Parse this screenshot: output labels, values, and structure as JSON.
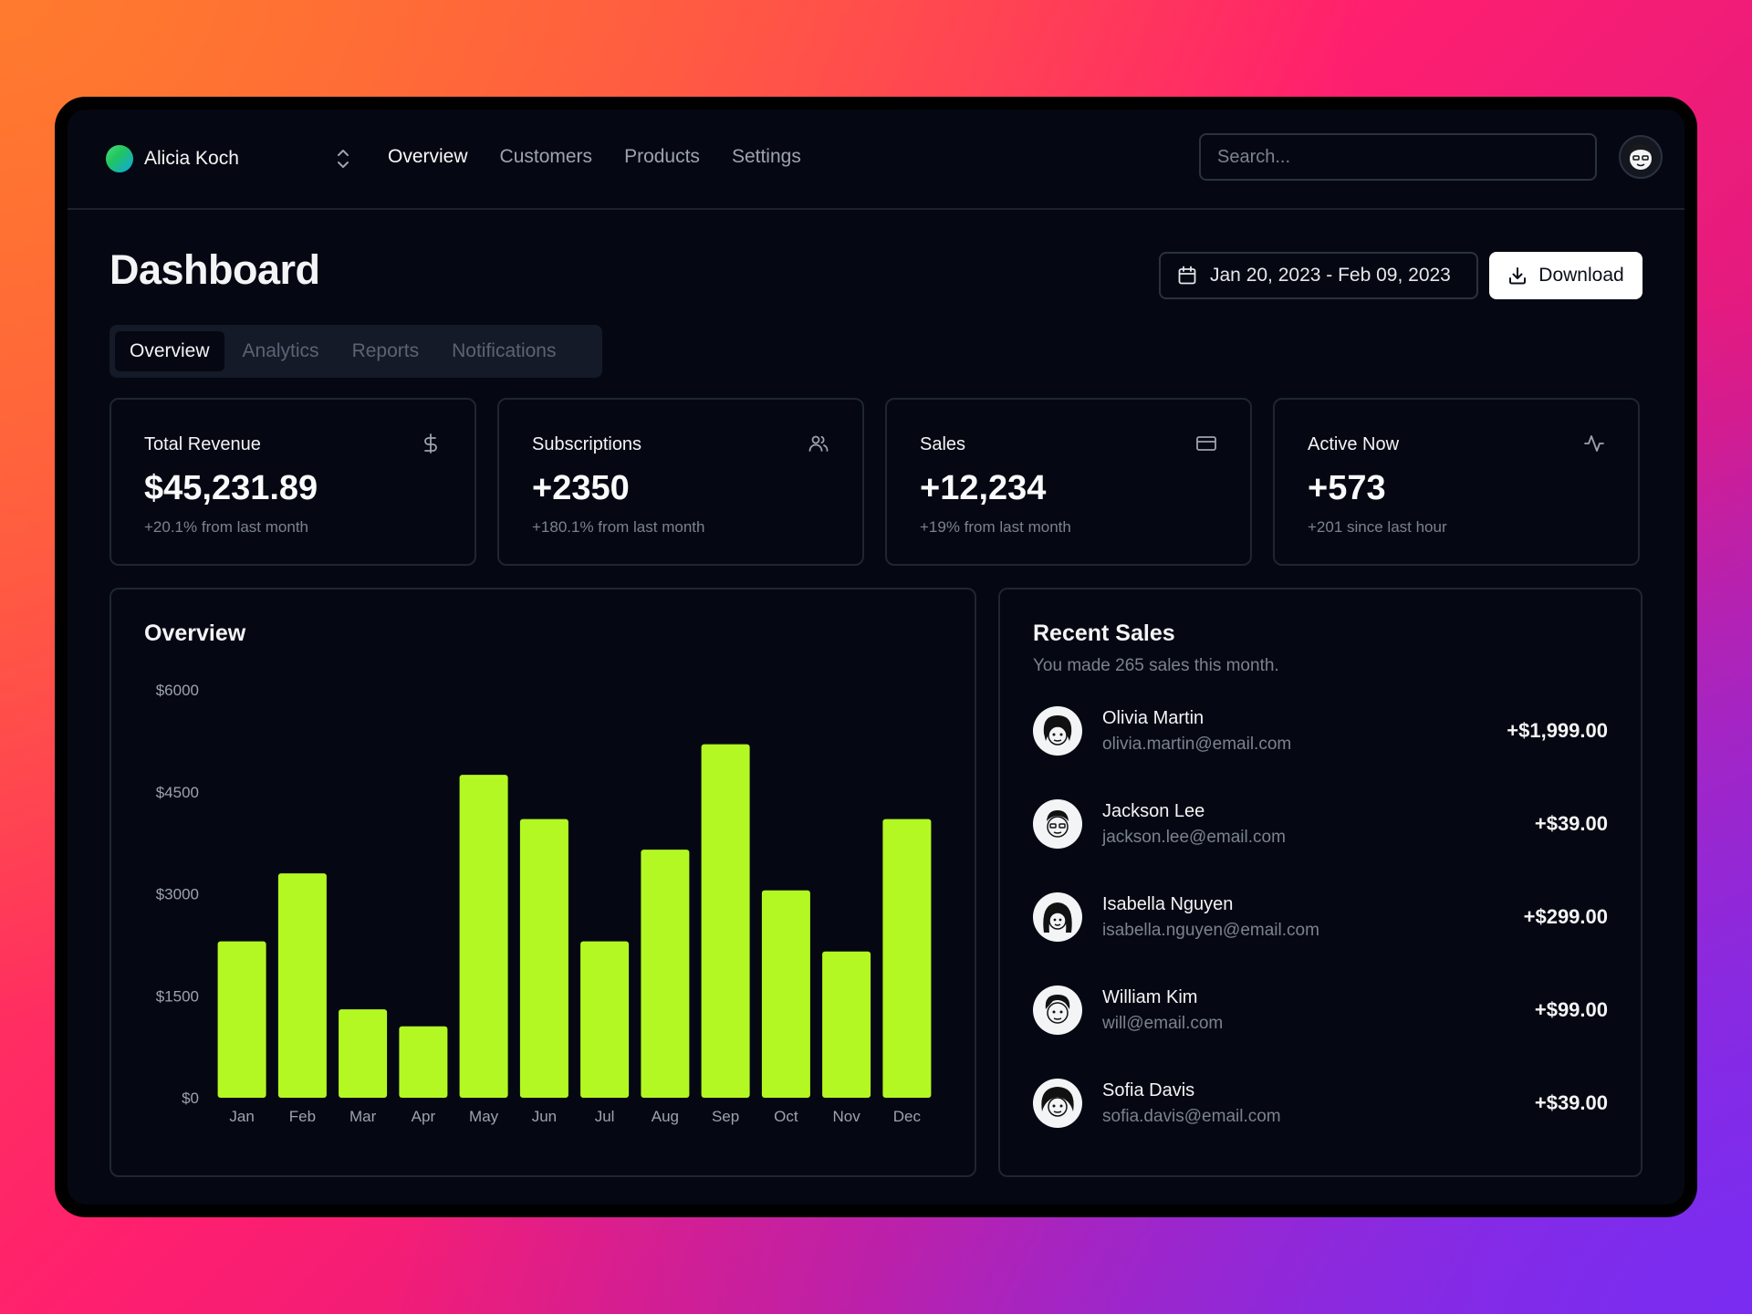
{
  "team": {
    "name": "Alicia Koch"
  },
  "nav": {
    "links": [
      {
        "label": "Overview",
        "active": true
      },
      {
        "label": "Customers",
        "active": false
      },
      {
        "label": "Products",
        "active": false
      },
      {
        "label": "Settings",
        "active": false
      }
    ]
  },
  "search": {
    "placeholder": "Search..."
  },
  "header": {
    "title": "Dashboard",
    "date_range": "Jan 20, 2023 - Feb 09, 2023",
    "download_label": "Download"
  },
  "tabs": [
    {
      "label": "Overview",
      "active": true
    },
    {
      "label": "Analytics",
      "active": false
    },
    {
      "label": "Reports",
      "active": false
    },
    {
      "label": "Notifications",
      "active": false
    }
  ],
  "stats": [
    {
      "title": "Total Revenue",
      "value": "$45,231.89",
      "sub": "+20.1% from last month",
      "icon": "dollar-icon"
    },
    {
      "title": "Subscriptions",
      "value": "+2350",
      "sub": "+180.1% from last month",
      "icon": "users-icon"
    },
    {
      "title": "Sales",
      "value": "+12,234",
      "sub": "+19% from last month",
      "icon": "credit-card-icon"
    },
    {
      "title": "Active Now",
      "value": "+573",
      "sub": "+201 since last hour",
      "icon": "activity-icon"
    }
  ],
  "overview": {
    "title": "Overview"
  },
  "chart_data": {
    "type": "bar",
    "categories": [
      "Jan",
      "Feb",
      "Mar",
      "Apr",
      "May",
      "Jun",
      "Jul",
      "Aug",
      "Sep",
      "Oct",
      "Nov",
      "Dec"
    ],
    "values": [
      2300,
      3300,
      1300,
      1050,
      4750,
      4100,
      2300,
      3650,
      5200,
      3050,
      2150,
      4100
    ],
    "ylim": [
      0,
      6000
    ],
    "yticks": [
      0,
      1500,
      3000,
      4500,
      6000
    ],
    "ytick_labels": [
      "$0",
      "$1500",
      "$3000",
      "$4500",
      "$6000"
    ],
    "color": "#b4f823",
    "grid": false
  },
  "recent_sales": {
    "title": "Recent Sales",
    "subtitle": "You made 265 sales this month.",
    "items": [
      {
        "name": "Olivia Martin",
        "email": "olivia.martin@email.com",
        "amount": "+$1,999.00"
      },
      {
        "name": "Jackson Lee",
        "email": "jackson.lee@email.com",
        "amount": "+$39.00"
      },
      {
        "name": "Isabella Nguyen",
        "email": "isabella.nguyen@email.com",
        "amount": "+$299.00"
      },
      {
        "name": "William Kim",
        "email": "will@email.com",
        "amount": "+$99.00"
      },
      {
        "name": "Sofia Davis",
        "email": "sofia.davis@email.com",
        "amount": "+$39.00"
      }
    ]
  },
  "colors": {
    "background": "#050812",
    "border": "#1f2533",
    "accent_bar": "#b4f823",
    "muted_text": "#7b828f"
  }
}
